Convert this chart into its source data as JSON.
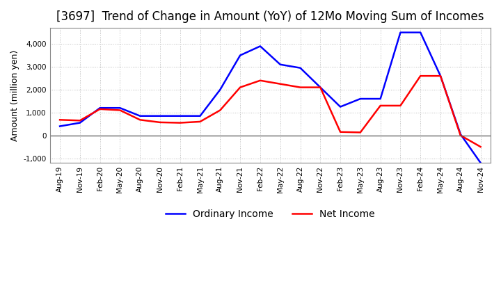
{
  "title": "[3697]  Trend of Change in Amount (YoY) of 12Mo Moving Sum of Incomes",
  "ylabel": "Amount (million yen)",
  "ylim": [
    -1200,
    4700
  ],
  "yticks": [
    -1000,
    0,
    1000,
    2000,
    3000,
    4000
  ],
  "x_labels": [
    "Aug-19",
    "Nov-19",
    "Feb-20",
    "May-20",
    "Aug-20",
    "Nov-20",
    "Feb-21",
    "May-21",
    "Aug-21",
    "Nov-21",
    "Feb-22",
    "May-22",
    "Aug-22",
    "Nov-22",
    "Feb-23",
    "May-23",
    "Aug-23",
    "Nov-23",
    "Feb-24",
    "May-24",
    "Aug-24",
    "Nov-24"
  ],
  "ordinary_income": [
    400,
    550,
    1200,
    1200,
    850,
    850,
    850,
    850,
    2000,
    3500,
    3900,
    3100,
    2950,
    2100,
    1250,
    1600,
    1600,
    4500,
    4500,
    2600,
    50,
    -1200
  ],
  "net_income": [
    680,
    650,
    1150,
    1100,
    680,
    570,
    550,
    600,
    1100,
    2100,
    2400,
    2250,
    2100,
    2100,
    150,
    130,
    1300,
    1300,
    2600,
    2600,
    0,
    -500
  ],
  "ordinary_color": "#0000ff",
  "net_color": "#ff0000",
  "line_width": 1.8,
  "background_color": "#ffffff",
  "grid_color": "#bbbbbb",
  "title_fontsize": 12,
  "legend_labels": [
    "Ordinary Income",
    "Net Income"
  ]
}
